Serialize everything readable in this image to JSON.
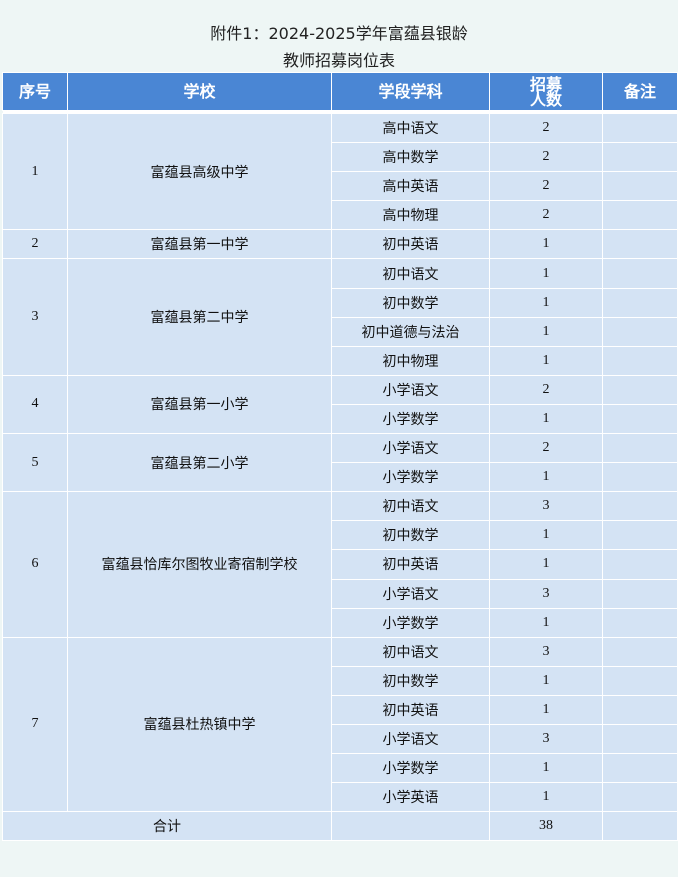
{
  "title": {
    "line1": "附件1：2024-2025学年富蕴县银龄",
    "line2": "教师招募岗位表"
  },
  "header": {
    "no": "序号",
    "school": "学校",
    "subject": "学段学科",
    "count": "招募\n人数",
    "remark": "备注"
  },
  "schools": [
    {
      "no": "1",
      "name": "富蕴县高级中学",
      "posts": [
        [
          "高中语文",
          "2"
        ],
        [
          "高中数学",
          "2"
        ],
        [
          "高中英语",
          "2"
        ],
        [
          "高中物理",
          "2"
        ]
      ]
    },
    {
      "no": "2",
      "name": "富蕴县第一中学",
      "posts": [
        [
          "初中英语",
          "1"
        ]
      ]
    },
    {
      "no": "3",
      "name": "富蕴县第二中学",
      "posts": [
        [
          "初中语文",
          "1"
        ],
        [
          "初中数学",
          "1"
        ],
        [
          "初中道德与法治",
          "1"
        ],
        [
          "初中物理",
          "1"
        ]
      ]
    },
    {
      "no": "4",
      "name": "富蕴县第一小学",
      "posts": [
        [
          "小学语文",
          "2"
        ],
        [
          "小学数学",
          "1"
        ]
      ]
    },
    {
      "no": "5",
      "name": "富蕴县第二小学",
      "posts": [
        [
          "小学语文",
          "2"
        ],
        [
          "小学数学",
          "1"
        ]
      ]
    },
    {
      "no": "6",
      "name": "富蕴县恰库尔图牧业寄宿制学校",
      "posts": [
        [
          "初中语文",
          "3"
        ],
        [
          "初中数学",
          "1"
        ],
        [
          "初中英语",
          "1"
        ],
        [
          "小学语文",
          "3"
        ],
        [
          "小学数学",
          "1"
        ]
      ]
    },
    {
      "no": "7",
      "name": "富蕴县杜热镇中学",
      "posts": [
        [
          "初中语文",
          "3"
        ],
        [
          "初中数学",
          "1"
        ],
        [
          "初中英语",
          "1"
        ],
        [
          "小学语文",
          "3"
        ],
        [
          "小学数学",
          "1"
        ],
        [
          "小学英语",
          "1"
        ]
      ]
    }
  ],
  "total": {
    "label": "合计",
    "value": "38"
  },
  "colors": {
    "header": "#4a86d4",
    "cell": "#d4e3f4",
    "page": "#eef6f5"
  }
}
